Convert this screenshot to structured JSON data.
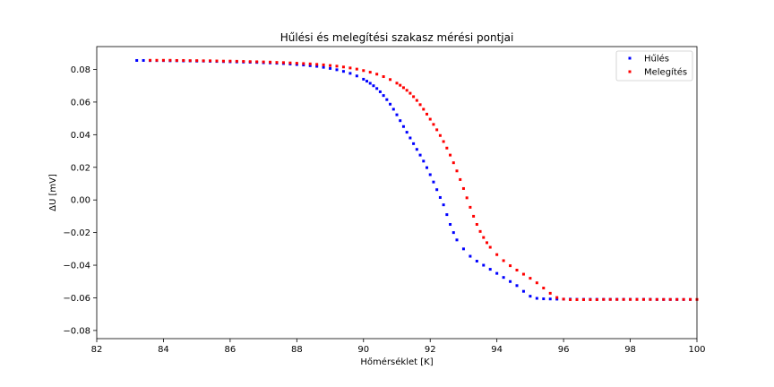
{
  "chart_data": {
    "type": "scatter",
    "title": "Hűlési és melegítési szakasz mérési pontjai",
    "xlabel": "Hőmérséklet [K]",
    "ylabel": "ΔU [mV]",
    "xlim": [
      82,
      100
    ],
    "ylim": [
      -0.085,
      0.094
    ],
    "xticks": [
      82,
      84,
      86,
      88,
      90,
      92,
      94,
      96,
      98,
      100
    ],
    "yticks": [
      0.08,
      0.06,
      0.04,
      0.02,
      0.0,
      -0.02,
      -0.04,
      -0.06,
      -0.08
    ],
    "xtick_labels": [
      "82",
      "84",
      "86",
      "88",
      "90",
      "92",
      "94",
      "96",
      "98",
      "100"
    ],
    "ytick_labels": [
      "0.08",
      "0.06",
      "0.04",
      "0.02",
      "0.00",
      "−0.02",
      "−0.04",
      "−0.06",
      "−0.08"
    ],
    "grid": false,
    "legend_position": "top-right",
    "series": [
      {
        "name": "Hűlés",
        "color": "#0000ff",
        "points": [
          [
            83.2,
            0.0855
          ],
          [
            83.4,
            0.0855
          ],
          [
            83.6,
            0.0854
          ],
          [
            83.8,
            0.0854
          ],
          [
            84.0,
            0.0854
          ],
          [
            84.2,
            0.0853
          ],
          [
            84.4,
            0.0853
          ],
          [
            84.6,
            0.0852
          ],
          [
            84.8,
            0.0852
          ],
          [
            85.0,
            0.0851
          ],
          [
            85.2,
            0.0851
          ],
          [
            85.4,
            0.085
          ],
          [
            85.6,
            0.0849
          ],
          [
            85.8,
            0.0848
          ],
          [
            86.0,
            0.0847
          ],
          [
            86.2,
            0.0846
          ],
          [
            86.4,
            0.0845
          ],
          [
            86.6,
            0.0844
          ],
          [
            86.8,
            0.0843
          ],
          [
            87.0,
            0.0841
          ],
          [
            87.2,
            0.084
          ],
          [
            87.4,
            0.0838
          ],
          [
            87.6,
            0.0836
          ],
          [
            87.8,
            0.0833
          ],
          [
            88.0,
            0.083
          ],
          [
            88.2,
            0.0827
          ],
          [
            88.4,
            0.0823
          ],
          [
            88.6,
            0.0819
          ],
          [
            88.8,
            0.0813
          ],
          [
            89.0,
            0.0806
          ],
          [
            89.2,
            0.0798
          ],
          [
            89.4,
            0.0788
          ],
          [
            89.6,
            0.0776
          ],
          [
            89.8,
            0.076
          ],
          [
            90.0,
            0.074
          ],
          [
            90.1,
            0.0728
          ],
          [
            90.2,
            0.0715
          ],
          [
            90.3,
            0.07
          ],
          [
            90.4,
            0.0683
          ],
          [
            90.5,
            0.0663
          ],
          [
            90.6,
            0.064
          ],
          [
            90.7,
            0.0615
          ],
          [
            90.8,
            0.0587
          ],
          [
            90.9,
            0.0556
          ],
          [
            91.0,
            0.0522
          ],
          [
            91.1,
            0.0486
          ],
          [
            91.2,
            0.045
          ],
          [
            91.3,
            0.0415
          ],
          [
            91.4,
            0.038
          ],
          [
            91.5,
            0.0345
          ],
          [
            91.6,
            0.031
          ],
          [
            91.7,
            0.0275
          ],
          [
            91.8,
            0.0238
          ],
          [
            91.9,
            0.0198
          ],
          [
            92.0,
            0.0155
          ],
          [
            92.1,
            0.011
          ],
          [
            92.2,
            0.0063
          ],
          [
            92.3,
            0.0015
          ],
          [
            92.4,
            -0.003
          ],
          [
            92.5,
            -0.009
          ],
          [
            92.6,
            -0.015
          ],
          [
            92.7,
            -0.02
          ],
          [
            92.8,
            -0.0245
          ],
          [
            93.0,
            -0.03
          ],
          [
            93.2,
            -0.0345
          ],
          [
            93.4,
            -0.0375
          ],
          [
            93.6,
            -0.04
          ],
          [
            93.8,
            -0.0425
          ],
          [
            94.0,
            -0.045
          ],
          [
            94.2,
            -0.0475
          ],
          [
            94.4,
            -0.05
          ],
          [
            94.6,
            -0.0525
          ],
          [
            94.8,
            -0.056
          ],
          [
            95.0,
            -0.059
          ],
          [
            95.2,
            -0.0603
          ],
          [
            95.4,
            -0.0606
          ],
          [
            95.6,
            -0.0607
          ],
          [
            95.8,
            -0.0608
          ],
          [
            96.0,
            -0.0608
          ],
          [
            96.2,
            -0.0608
          ],
          [
            96.4,
            -0.0609
          ],
          [
            96.6,
            -0.0609
          ],
          [
            96.8,
            -0.0609
          ],
          [
            97.0,
            -0.0609
          ],
          [
            97.2,
            -0.0609
          ],
          [
            97.4,
            -0.0609
          ],
          [
            97.6,
            -0.0609
          ],
          [
            97.8,
            -0.0609
          ],
          [
            98.0,
            -0.0609
          ],
          [
            98.2,
            -0.0609
          ],
          [
            98.4,
            -0.0609
          ],
          [
            98.6,
            -0.0609
          ],
          [
            98.8,
            -0.061
          ],
          [
            99.0,
            -0.061
          ],
          [
            99.2,
            -0.061
          ],
          [
            99.4,
            -0.061
          ],
          [
            99.6,
            -0.061
          ],
          [
            99.8,
            -0.061
          ]
        ]
      },
      {
        "name": "Melegítés",
        "color": "#ff0000",
        "points": [
          [
            83.6,
            0.0856
          ],
          [
            83.8,
            0.0856
          ],
          [
            84.0,
            0.0856
          ],
          [
            84.2,
            0.0856
          ],
          [
            84.4,
            0.0855
          ],
          [
            84.6,
            0.0855
          ],
          [
            84.8,
            0.0854
          ],
          [
            85.0,
            0.0854
          ],
          [
            85.2,
            0.0853
          ],
          [
            85.4,
            0.0853
          ],
          [
            85.6,
            0.0852
          ],
          [
            85.8,
            0.0851
          ],
          [
            86.0,
            0.0851
          ],
          [
            86.2,
            0.085
          ],
          [
            86.4,
            0.0849
          ],
          [
            86.6,
            0.0848
          ],
          [
            86.8,
            0.0847
          ],
          [
            87.0,
            0.0846
          ],
          [
            87.2,
            0.0845
          ],
          [
            87.4,
            0.0843
          ],
          [
            87.6,
            0.0842
          ],
          [
            87.8,
            0.084
          ],
          [
            88.0,
            0.0838
          ],
          [
            88.2,
            0.0836
          ],
          [
            88.4,
            0.0834
          ],
          [
            88.6,
            0.0831
          ],
          [
            88.8,
            0.0828
          ],
          [
            89.0,
            0.0824
          ],
          [
            89.2,
            0.082
          ],
          [
            89.4,
            0.0815
          ],
          [
            89.6,
            0.0809
          ],
          [
            89.8,
            0.0802
          ],
          [
            90.0,
            0.0793
          ],
          [
            90.2,
            0.0783
          ],
          [
            90.4,
            0.0771
          ],
          [
            90.6,
            0.0756
          ],
          [
            90.8,
            0.0738
          ],
          [
            91.0,
            0.0716
          ],
          [
            91.1,
            0.0703
          ],
          [
            91.2,
            0.0688
          ],
          [
            91.3,
            0.0672
          ],
          [
            91.4,
            0.0654
          ],
          [
            91.5,
            0.0633
          ],
          [
            91.6,
            0.061
          ],
          [
            91.7,
            0.0584
          ],
          [
            91.8,
            0.0556
          ],
          [
            91.9,
            0.0526
          ],
          [
            92.0,
            0.0495
          ],
          [
            92.1,
            0.0463
          ],
          [
            92.2,
            0.043
          ],
          [
            92.3,
            0.0395
          ],
          [
            92.4,
            0.0358
          ],
          [
            92.5,
            0.0318
          ],
          [
            92.6,
            0.0275
          ],
          [
            92.7,
            0.0228
          ],
          [
            92.8,
            0.0178
          ],
          [
            92.9,
            0.0125
          ],
          [
            93.0,
            0.007
          ],
          [
            93.1,
            0.0013
          ],
          [
            93.2,
            -0.0045
          ],
          [
            93.3,
            -0.01
          ],
          [
            93.4,
            -0.015
          ],
          [
            93.5,
            -0.0193
          ],
          [
            93.6,
            -0.023
          ],
          [
            93.7,
            -0.0262
          ],
          [
            93.8,
            -0.029
          ],
          [
            94.0,
            -0.0335
          ],
          [
            94.2,
            -0.0372
          ],
          [
            94.4,
            -0.0403
          ],
          [
            94.6,
            -0.043
          ],
          [
            94.8,
            -0.0455
          ],
          [
            95.0,
            -0.048
          ],
          [
            95.2,
            -0.0508
          ],
          [
            95.4,
            -0.054
          ],
          [
            95.6,
            -0.0572
          ],
          [
            95.8,
            -0.0598
          ],
          [
            96.0,
            -0.0608
          ],
          [
            96.2,
            -0.0611
          ],
          [
            96.4,
            -0.0611
          ],
          [
            96.6,
            -0.0611
          ],
          [
            96.8,
            -0.0611
          ],
          [
            97.0,
            -0.0611
          ],
          [
            97.2,
            -0.061
          ],
          [
            97.4,
            -0.061
          ],
          [
            97.6,
            -0.061
          ],
          [
            97.8,
            -0.061
          ],
          [
            98.0,
            -0.061
          ],
          [
            98.2,
            -0.061
          ],
          [
            98.4,
            -0.061
          ],
          [
            98.6,
            -0.061
          ],
          [
            98.8,
            -0.061
          ],
          [
            99.0,
            -0.061
          ],
          [
            99.2,
            -0.061
          ],
          [
            99.4,
            -0.061
          ],
          [
            99.6,
            -0.061
          ],
          [
            99.8,
            -0.061
          ],
          [
            100.0,
            -0.061
          ]
        ]
      }
    ]
  }
}
